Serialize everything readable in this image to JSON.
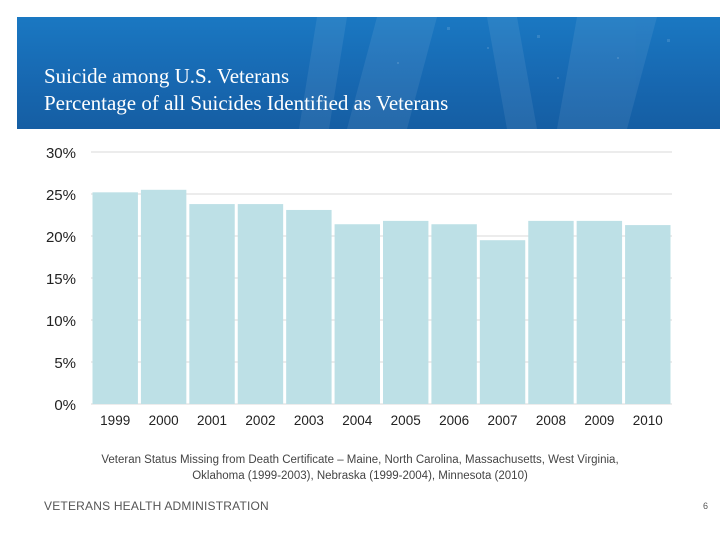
{
  "slide": {
    "title_line1": "Suicide among U.S. Veterans",
    "title_line2": "Percentage of all Suicides Identified as Veterans",
    "note_line1": "Veteran Status Missing from Death Certificate – Maine, North Carolina, Massachusetts, West Virginia,",
    "note_line2": "Oklahoma (1999-2003), Nebraska (1999-2004), Minnesota (2010)",
    "footer": "VETERANS HEALTH ADMINISTRATION",
    "page_number": "6"
  },
  "colors": {
    "banner": "#1767b0",
    "bar": "#bde0e6",
    "gridline": "#d9d9d9",
    "axis_text": "#222222"
  },
  "chart_data": {
    "type": "bar",
    "categories": [
      "1999",
      "2000",
      "2001",
      "2002",
      "2003",
      "2004",
      "2005",
      "2006",
      "2007",
      "2008",
      "2009",
      "2010"
    ],
    "values": [
      25.2,
      25.5,
      23.8,
      23.8,
      23.1,
      21.4,
      21.8,
      21.4,
      19.5,
      21.8,
      21.8,
      21.3
    ],
    "title": "",
    "xlabel": "",
    "ylabel": "",
    "ylim": [
      0,
      30
    ],
    "yticks": [
      0,
      5,
      10,
      15,
      20,
      25,
      30
    ],
    "ytick_format": "percent",
    "grid": true,
    "legend": "none"
  }
}
